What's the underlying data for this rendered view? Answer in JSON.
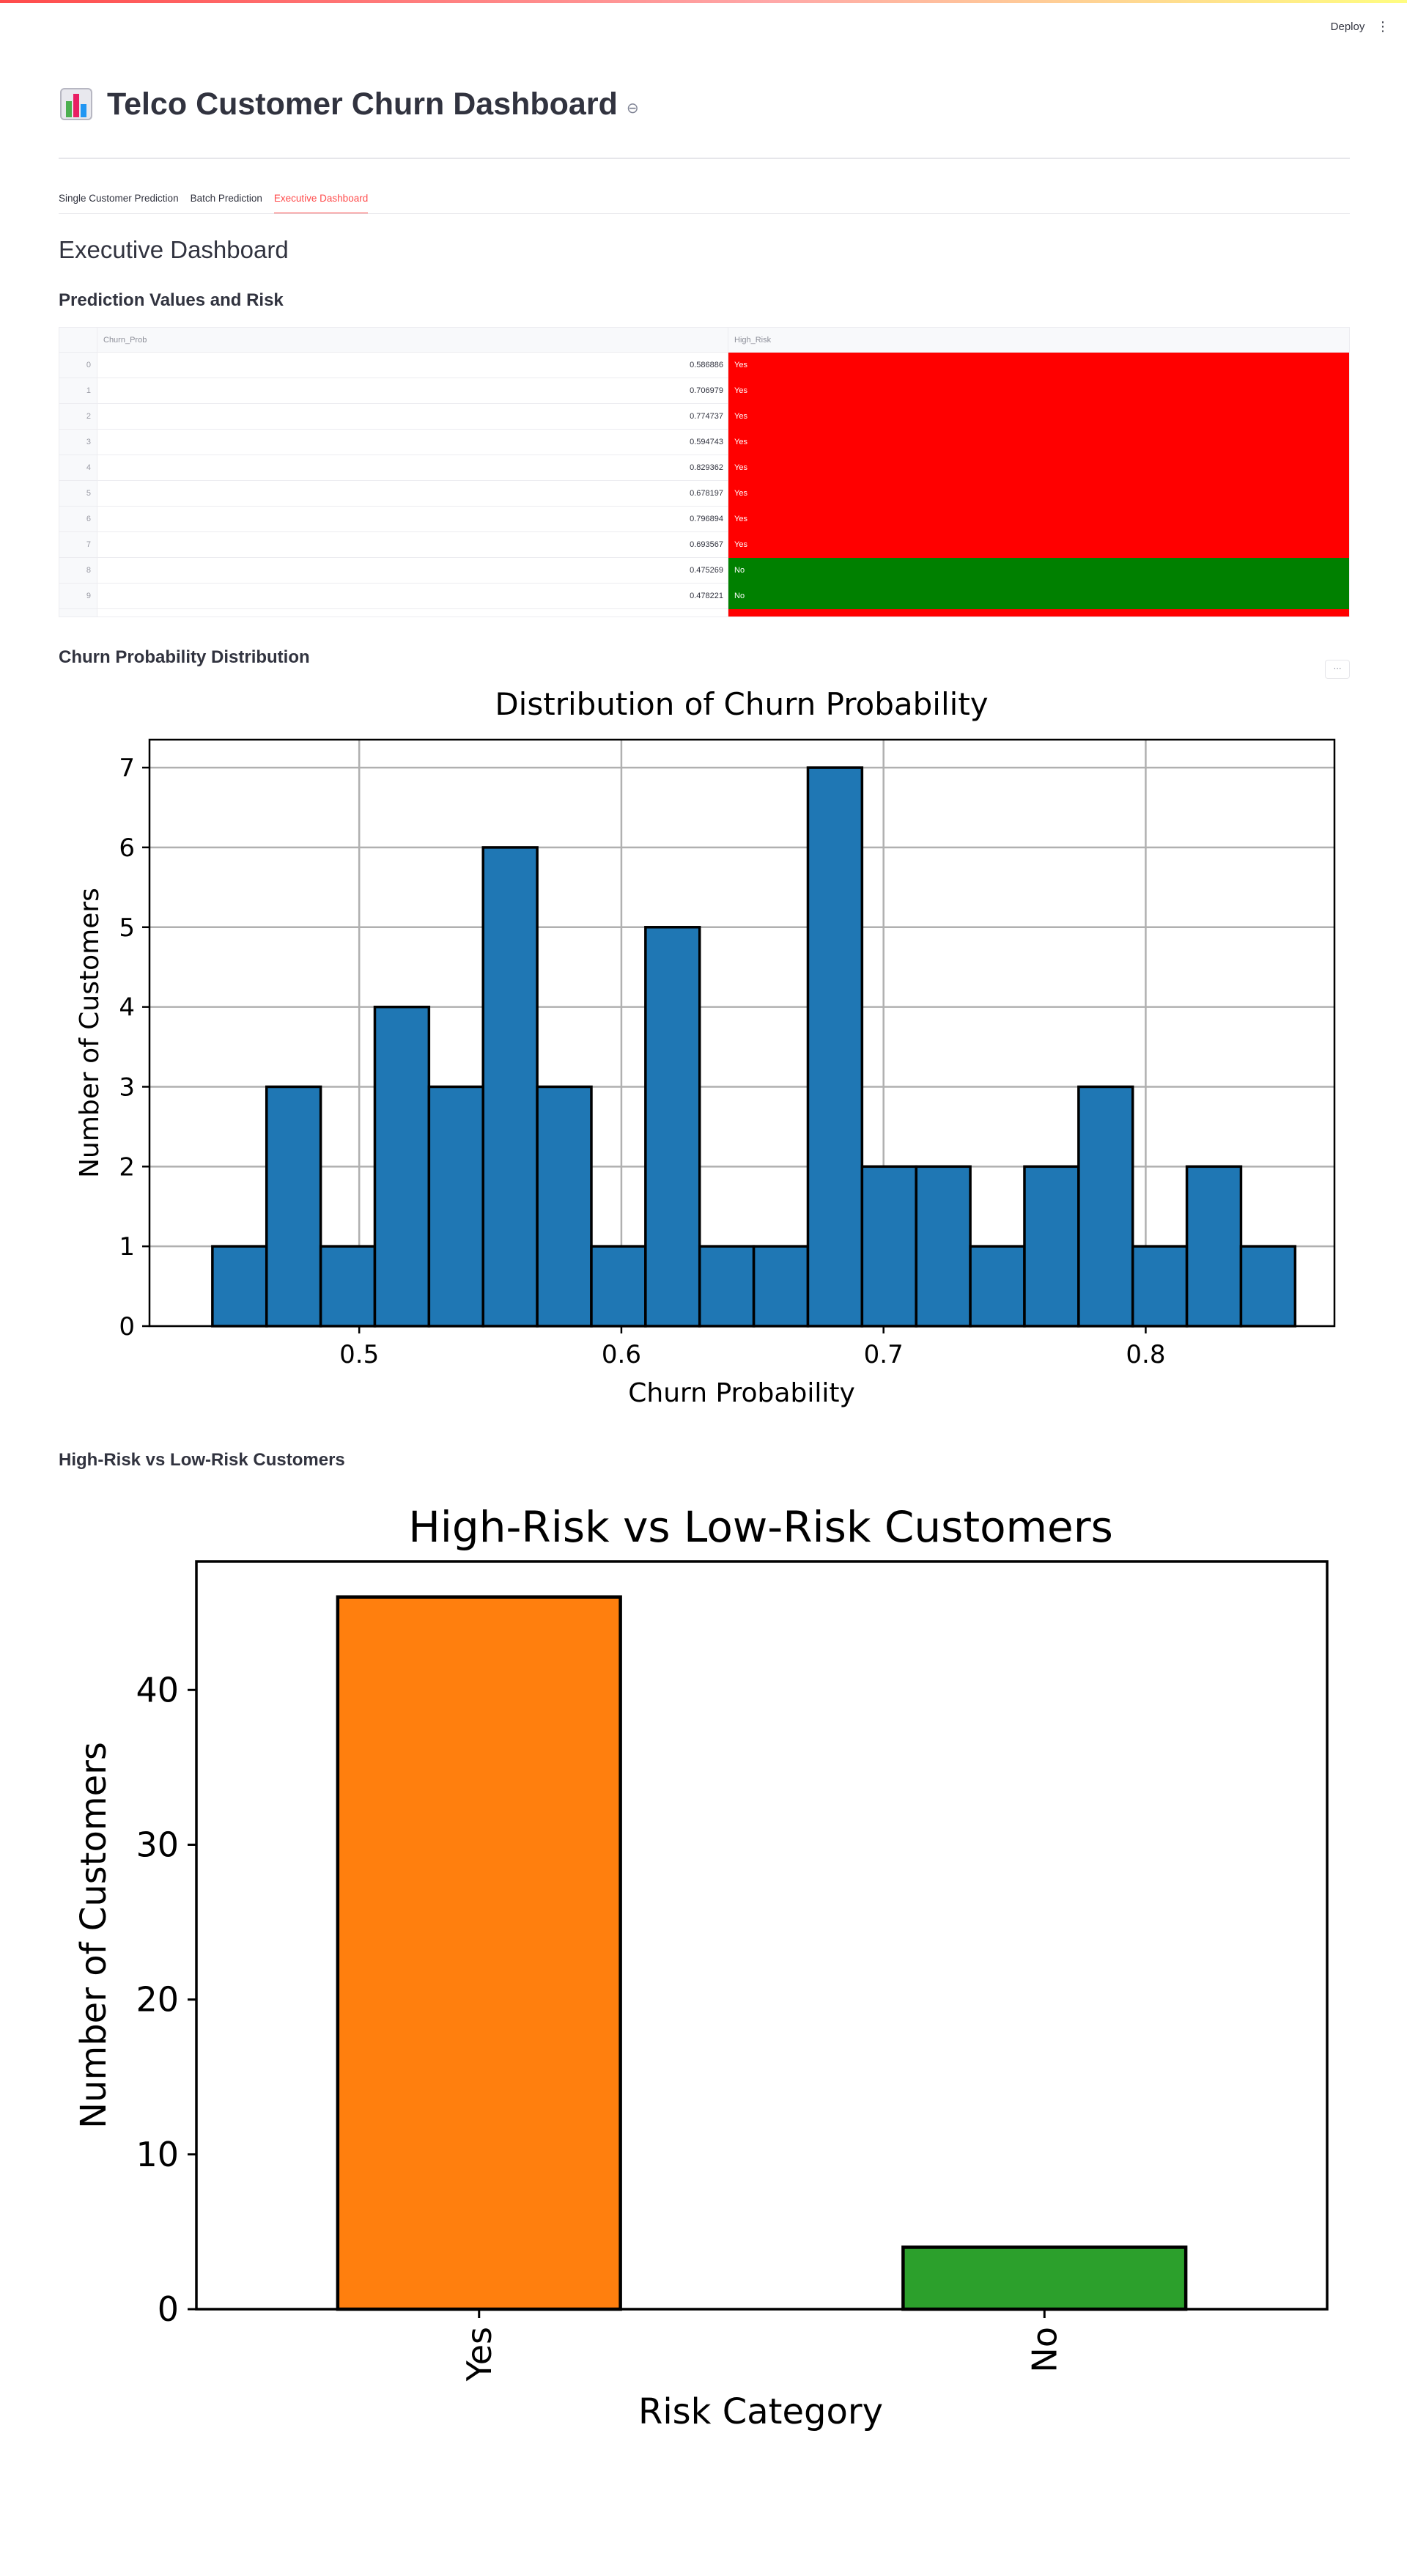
{
  "header": {
    "deploy_label": "Deploy",
    "menu_icon": "⋮"
  },
  "page": {
    "title": "Telco Customer Churn Dashboard",
    "anchor_icon": "⊖"
  },
  "tabs": [
    {
      "label": "Single Customer Prediction",
      "active": false
    },
    {
      "label": "Batch Prediction",
      "active": false
    },
    {
      "label": "Executive Dashboard",
      "active": true
    }
  ],
  "main": {
    "heading": "Executive Dashboard",
    "table_heading": "Prediction Values and Risk",
    "hist_heading": "Churn Probability Distribution",
    "bar_heading": "High-Risk vs Low-Risk Customers",
    "chart_menu_label": "⋯"
  },
  "table": {
    "columns": [
      "Churn_Prob",
      "High_Risk"
    ],
    "rows": [
      {
        "index": "0",
        "prob": "0.586886",
        "risk": "Yes"
      },
      {
        "index": "1",
        "prob": "0.706979",
        "risk": "Yes"
      },
      {
        "index": "2",
        "prob": "0.774737",
        "risk": "Yes"
      },
      {
        "index": "3",
        "prob": "0.594743",
        "risk": "Yes"
      },
      {
        "index": "4",
        "prob": "0.829362",
        "risk": "Yes"
      },
      {
        "index": "5",
        "prob": "0.678197",
        "risk": "Yes"
      },
      {
        "index": "6",
        "prob": "0.796894",
        "risk": "Yes"
      },
      {
        "index": "7",
        "prob": "0.693567",
        "risk": "Yes"
      },
      {
        "index": "8",
        "prob": "0.475269",
        "risk": "No"
      },
      {
        "index": "9",
        "prob": "0.478221",
        "risk": "No"
      }
    ],
    "colors": {
      "Yes": "#ff0000",
      "No": "#008000"
    }
  },
  "chart_data": [
    {
      "type": "bar",
      "title": "Distribution of Churn Probability",
      "xlabel": "Churn Probability",
      "ylabel": "Number of Customers",
      "bin_start": 0.444,
      "bin_width": 0.02065,
      "values": [
        1,
        3,
        1,
        4,
        3,
        6,
        3,
        1,
        5,
        1,
        1,
        7,
        2,
        2,
        1,
        2,
        3,
        1,
        2,
        1
      ],
      "xlim": [
        0.42,
        0.872
      ],
      "ylim": [
        0,
        7.35
      ],
      "xticks": [
        "0.5",
        "0.6",
        "0.7",
        "0.8"
      ],
      "xtick_values": [
        0.5,
        0.6,
        0.7,
        0.8
      ],
      "yticks": [
        "0",
        "1",
        "2",
        "3",
        "4",
        "5",
        "6",
        "7"
      ],
      "grid": true,
      "color": "#1f77b4"
    },
    {
      "type": "bar",
      "title": "High-Risk vs Low-Risk Customers",
      "xlabel": "Risk Category",
      "ylabel": "Number of Customers",
      "categories": [
        "Yes",
        "No"
      ],
      "values": [
        46,
        4
      ],
      "colors": [
        "#ff7f0e",
        "#2ca02c"
      ],
      "ylim": [
        0,
        48.3
      ],
      "yticks": [
        "0",
        "10",
        "20",
        "30",
        "40"
      ],
      "ytick_values": [
        0,
        10,
        20,
        30,
        40
      ],
      "grid": false
    }
  ]
}
